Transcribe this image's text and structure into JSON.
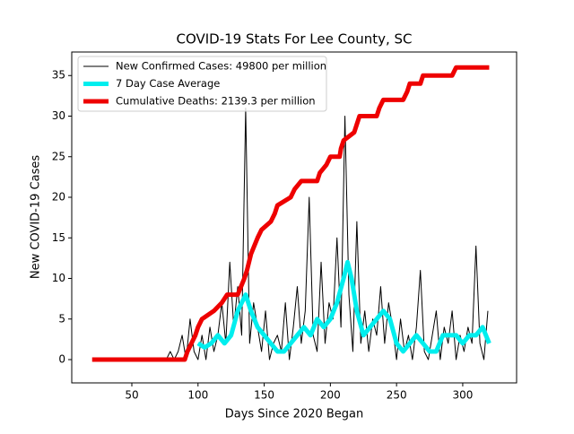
{
  "chart_data": {
    "type": "line",
    "title": "COVID-19 Stats For Lee County, SC",
    "x_label": "Days Since 2020 Began",
    "y_label": "New COVID-19 Cases",
    "xlim": [
      4.6,
      340.7
    ],
    "ylim": [
      -2.87,
      37.9
    ],
    "xticks": [
      50,
      100,
      150,
      200,
      250,
      300
    ],
    "yticks": [
      0,
      5,
      10,
      15,
      20,
      25,
      30,
      35
    ],
    "grid": false,
    "legend": "upper left",
    "series": [
      {
        "name": "New Confirmed Cases: 49800 per million",
        "color": "#000000",
        "width": 1,
        "x": [
          76,
          79,
          82,
          85,
          88,
          91,
          94,
          97,
          100,
          103,
          106,
          109,
          112,
          115,
          118,
          121,
          124,
          127,
          130,
          133,
          136,
          139,
          142,
          145,
          148,
          151,
          154,
          157,
          160,
          163,
          166,
          169,
          172,
          175,
          178,
          181,
          184,
          187,
          190,
          193,
          196,
          199,
          202,
          205,
          208,
          211,
          214,
          217,
          220,
          223,
          226,
          229,
          232,
          235,
          238,
          241,
          244,
          247,
          250,
          253,
          256,
          259,
          262,
          265,
          268,
          271,
          274,
          277,
          280,
          283,
          286,
          289,
          292,
          295,
          298,
          301,
          304,
          307,
          310,
          313,
          316,
          319
        ],
        "values": [
          0,
          1,
          0,
          1,
          3,
          0,
          5,
          1,
          0,
          3,
          0,
          4,
          1,
          3,
          7,
          2,
          12,
          4,
          9,
          3,
          31,
          2,
          7,
          4,
          1,
          6,
          0,
          2,
          3,
          1,
          7,
          0,
          4,
          9,
          2,
          6,
          20,
          3,
          1,
          12,
          2,
          7,
          5,
          15,
          4,
          30,
          8,
          1,
          17,
          2,
          6,
          1,
          5,
          3,
          9,
          2,
          7,
          4,
          0,
          5,
          1,
          3,
          0,
          4,
          11,
          1,
          0,
          3,
          6,
          0,
          4,
          2,
          6,
          0,
          3,
          1,
          4,
          2,
          14,
          2,
          0,
          6
        ]
      },
      {
        "name": "7 Day Case Average",
        "color": "#00eeee",
        "width": 5,
        "x": [
          100,
          105,
          110,
          115,
          120,
          125,
          130,
          133,
          136,
          140,
          145,
          150,
          155,
          160,
          165,
          170,
          175,
          180,
          185,
          190,
          195,
          200,
          205,
          210,
          213,
          216,
          220,
          225,
          230,
          235,
          240,
          245,
          250,
          255,
          260,
          265,
          270,
          275,
          280,
          285,
          290,
          295,
          300,
          305,
          310,
          315,
          320
        ],
        "values": [
          2,
          1.5,
          2,
          3,
          2,
          3,
          6,
          7,
          8,
          6,
          4,
          3,
          2,
          1,
          1,
          2,
          3,
          4,
          3,
          5,
          4,
          5,
          7,
          10,
          12,
          10,
          6,
          3,
          4,
          5,
          6,
          5,
          2,
          1,
          2,
          3,
          2,
          1,
          1,
          3,
          3,
          3,
          2,
          3,
          3,
          4,
          2
        ]
      },
      {
        "name": "Cumulative Deaths: 2139.3 per million",
        "color": "#ee0000",
        "width": 5,
        "x": [
          20,
          90,
          92,
          95,
          98,
          100,
          103,
          112,
          118,
          122,
          130,
          135,
          137,
          140,
          145,
          148,
          155,
          158,
          160,
          170,
          173,
          178,
          190,
          192,
          197,
          200,
          207,
          208,
          210,
          218,
          220,
          222,
          235,
          237,
          240,
          255,
          258,
          260,
          268,
          270,
          292,
          295,
          320
        ],
        "values": [
          0,
          0,
          1,
          2,
          3,
          4,
          5,
          6,
          7,
          8,
          8,
          10,
          11,
          13,
          15,
          16,
          17,
          18,
          19,
          20,
          21,
          22,
          22,
          23,
          24,
          25,
          25,
          26,
          27,
          28,
          29,
          30,
          30,
          31,
          32,
          32,
          33,
          34,
          34,
          35,
          35,
          36,
          36
        ]
      }
    ]
  }
}
